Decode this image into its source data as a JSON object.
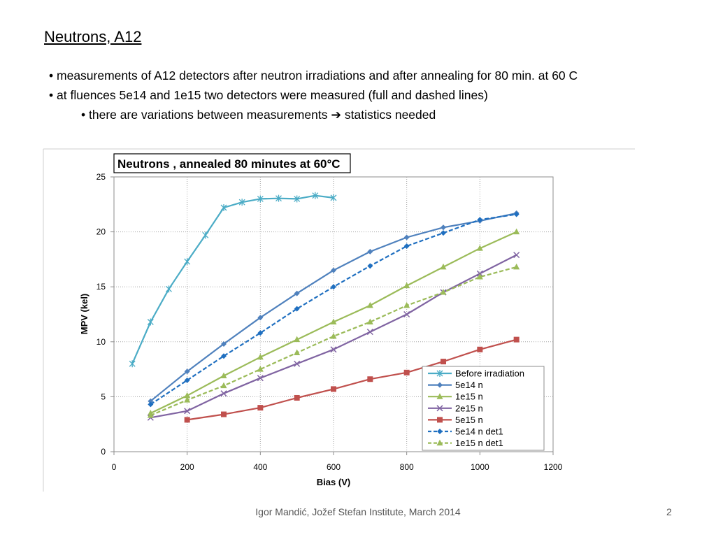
{
  "slide": {
    "title": "Neutrons, A12",
    "bullets": [
      {
        "bullet": "•",
        "text": "measurements of A12 detectors after neutron irradiations and after annealing for 80 min. at 60 C"
      },
      {
        "bullet": "•",
        "text": "at fluences 5e14 and 1e15 two detectors were measured (full and dashed lines)"
      }
    ],
    "sub_bullet": {
      "bullet": "•",
      "text_before": "there are  variations between measurements",
      "arrow_icon": "right-arrow-icon",
      "text_after": "statistics needed"
    }
  },
  "footer": {
    "credit": "Igor Mandić, Jožef Stefan Institute, March 2014",
    "page_number": "2"
  },
  "chart_data": {
    "type": "line",
    "title": "Neutrons , annealed 80 minutes at 60°C",
    "xlabel": "Bias (V)",
    "ylabel": "MPV (kel)",
    "xlim": [
      0,
      1200
    ],
    "ylim": [
      0,
      25
    ],
    "xticks": [
      0,
      200,
      400,
      600,
      800,
      1000,
      1200
    ],
    "yticks": [
      0,
      5,
      10,
      15,
      20,
      25
    ],
    "grid": "horizontal",
    "legend_position": "bottom-right",
    "series": [
      {
        "name": "Before irradiation",
        "color": "#4BACC6",
        "marker": "star",
        "dashed": false,
        "x": [
          50,
          100,
          150,
          200,
          250,
          300,
          350,
          400,
          450,
          500,
          550,
          600
        ],
        "y": [
          8.0,
          11.8,
          14.8,
          17.3,
          19.7,
          22.2,
          22.7,
          23.0,
          23.05,
          23.0,
          23.3,
          23.1
        ]
      },
      {
        "name": "5e14 n",
        "color": "#4F81BD",
        "marker": "diamond",
        "dashed": false,
        "x": [
          100,
          200,
          300,
          400,
          500,
          600,
          700,
          800,
          900,
          1000,
          1100
        ],
        "y": [
          4.6,
          7.3,
          9.8,
          12.2,
          14.4,
          16.5,
          18.2,
          19.5,
          20.4,
          21.0,
          21.7
        ]
      },
      {
        "name": "1e15 n",
        "color": "#9BBB59",
        "marker": "triangle",
        "dashed": false,
        "x": [
          100,
          200,
          300,
          400,
          500,
          600,
          700,
          800,
          900,
          1000,
          1100
        ],
        "y": [
          3.5,
          5.1,
          6.9,
          8.6,
          10.2,
          11.8,
          13.3,
          15.1,
          16.8,
          18.5,
          20.0
        ]
      },
      {
        "name": "2e15 n",
        "color": "#8064A2",
        "marker": "x",
        "dashed": false,
        "x": [
          100,
          200,
          300,
          400,
          500,
          600,
          700,
          800,
          900,
          1000,
          1100
        ],
        "y": [
          3.1,
          3.7,
          5.3,
          6.7,
          8.0,
          9.3,
          10.9,
          12.5,
          14.5,
          16.2,
          17.9
        ]
      },
      {
        "name": "5e15 n",
        "color": "#C0504D",
        "marker": "square",
        "dashed": false,
        "x": [
          200,
          300,
          400,
          500,
          600,
          700,
          800,
          900,
          1000,
          1100
        ],
        "y": [
          2.9,
          3.4,
          4.0,
          4.9,
          5.7,
          6.6,
          7.2,
          8.2,
          9.3,
          10.2
        ]
      },
      {
        "name": "5e14 n det1",
        "color": "#1F6FC0",
        "marker": "diamond",
        "dashed": true,
        "x": [
          100,
          200,
          300,
          400,
          500,
          600,
          700,
          800,
          900,
          1000,
          1100
        ],
        "y": [
          4.3,
          6.5,
          8.7,
          10.8,
          13.0,
          15.0,
          16.9,
          18.7,
          19.9,
          21.1,
          21.6
        ]
      },
      {
        "name": "1e15 n det1",
        "color": "#9BBB59",
        "marker": "triangle",
        "dashed": true,
        "x": [
          100,
          200,
          300,
          400,
          500,
          600,
          700,
          800,
          900,
          1000,
          1100
        ],
        "y": [
          3.3,
          4.7,
          6.0,
          7.5,
          9.0,
          10.5,
          11.8,
          13.3,
          14.5,
          15.9,
          16.8
        ]
      }
    ]
  }
}
